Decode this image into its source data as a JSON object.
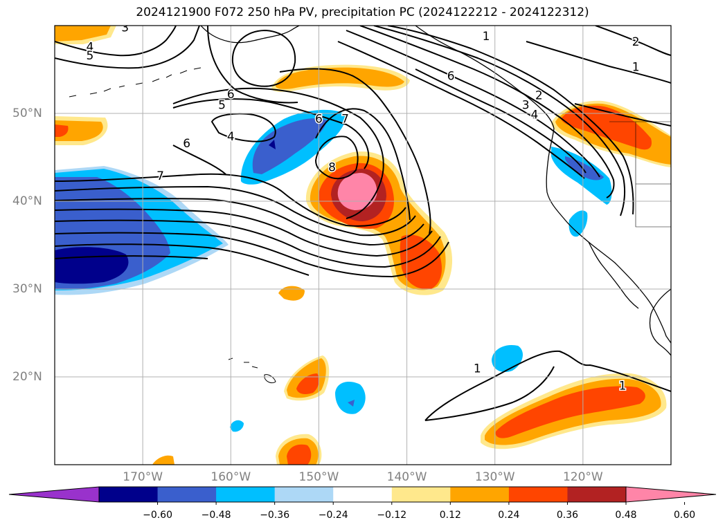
{
  "title": "2024121900 F072 250 hPa PV, precipitation PC (2024122212 - 2024122312)",
  "map": {
    "projection": "PlateCarree",
    "extent_lon": [
      -180,
      -110
    ],
    "extent_lat": [
      10,
      60
    ],
    "lon_ticks": [
      {
        "value": -170,
        "label": "170°W"
      },
      {
        "value": -160,
        "label": "160°W"
      },
      {
        "value": -150,
        "label": "150°W"
      },
      {
        "value": -140,
        "label": "140°W"
      },
      {
        "value": -130,
        "label": "130°W"
      },
      {
        "value": -120,
        "label": "120°W"
      }
    ],
    "lat_ticks": [
      {
        "value": 50,
        "label": "50°N"
      },
      {
        "value": 40,
        "label": "40°N"
      },
      {
        "value": 30,
        "label": "30°N"
      },
      {
        "value": 20,
        "label": "20°N"
      }
    ],
    "grid": true,
    "contour_labels": [
      {
        "label": "3",
        "lon": -172,
        "lat": 59.8
      },
      {
        "label": "4",
        "lon": -176,
        "lat": 57.6
      },
      {
        "label": "5",
        "lon": -176,
        "lat": 56.6
      },
      {
        "label": "6",
        "lon": -160,
        "lat": 52.2
      },
      {
        "label": "5",
        "lon": -161,
        "lat": 51.0
      },
      {
        "label": "4",
        "lon": -160,
        "lat": 47.4
      },
      {
        "label": "6",
        "lon": -165,
        "lat": 46.6
      },
      {
        "label": "7",
        "lon": -168,
        "lat": 42.9
      },
      {
        "label": "6",
        "lon": -150,
        "lat": 49.4
      },
      {
        "label": "7",
        "lon": -147,
        "lat": 49.4
      },
      {
        "label": "8",
        "lon": -148.5,
        "lat": 43.9
      },
      {
        "label": "6",
        "lon": -135,
        "lat": 54.3
      },
      {
        "label": "1",
        "lon": -131,
        "lat": 58.8
      },
      {
        "label": "2",
        "lon": -114,
        "lat": 58.2
      },
      {
        "label": "1",
        "lon": -114,
        "lat": 55.3
      },
      {
        "label": "2",
        "lon": -125,
        "lat": 52.1
      },
      {
        "label": "3",
        "lon": -126.5,
        "lat": 51.0
      },
      {
        "label": "4",
        "lon": -125.5,
        "lat": 49.9
      },
      {
        "label": "1",
        "lon": -132,
        "lat": 21.0
      },
      {
        "label": "1",
        "lon": -115.5,
        "lat": 19.0
      }
    ],
    "colors": {
      "coast": "#000000",
      "contour": "#000000",
      "grid": "#b0b0b0"
    }
  },
  "colorbar": {
    "levels": [
      -0.6,
      -0.48,
      -0.36,
      -0.24,
      -0.12,
      0.12,
      0.24,
      0.36,
      0.48,
      0.6
    ],
    "tick_labels": [
      "−0.60",
      "−0.48",
      "−0.36",
      "−0.24",
      "−0.12",
      "0.12",
      "0.24",
      "0.36",
      "0.48",
      "0.60"
    ],
    "colors": [
      "#9932cc",
      "#00008b",
      "#3a5fcd",
      "#00bfff",
      "#add8f6",
      "#ffffff",
      "#ffe88c",
      "#ffa500",
      "#ff4500",
      "#b22222",
      "#ff85a8"
    ],
    "extend": "both"
  }
}
